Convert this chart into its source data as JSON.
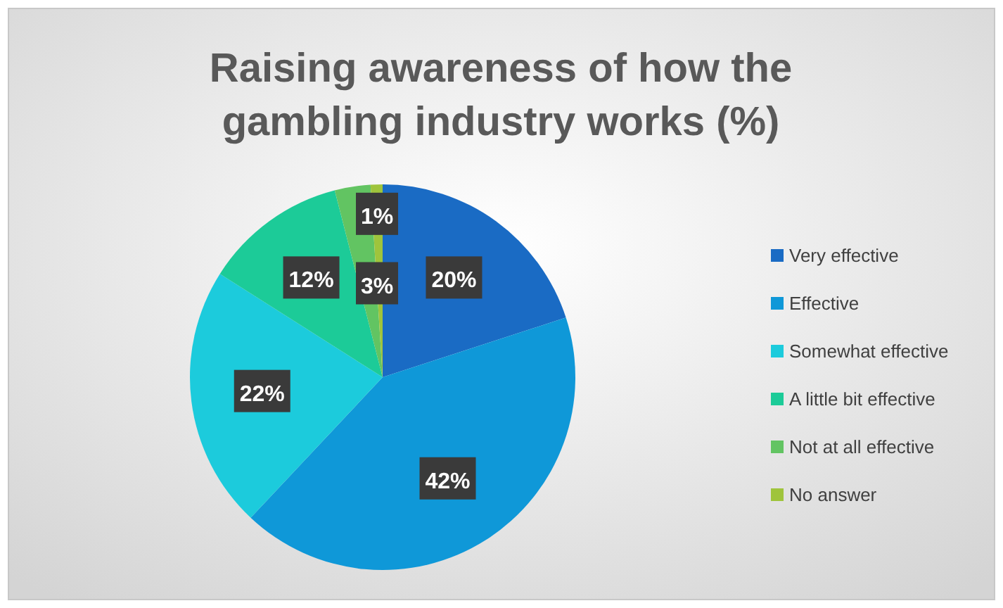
{
  "chart_data": {
    "type": "pie",
    "title": "Raising awareness of how the gambling industry works (%)",
    "categories": [
      "Very effective",
      "Effective",
      "Somewhat effective",
      "A little bit effective",
      "Not at all effective",
      "No answer"
    ],
    "values": [
      20,
      42,
      22,
      12,
      3,
      1
    ],
    "colors": [
      "#1a6bc4",
      "#0f98d8",
      "#1ccbdc",
      "#1ccb98",
      "#62c462",
      "#9fc43c"
    ],
    "value_labels": [
      "20%",
      "42%",
      "22%",
      "12%",
      "3%",
      "1%"
    ],
    "legend": "right"
  }
}
